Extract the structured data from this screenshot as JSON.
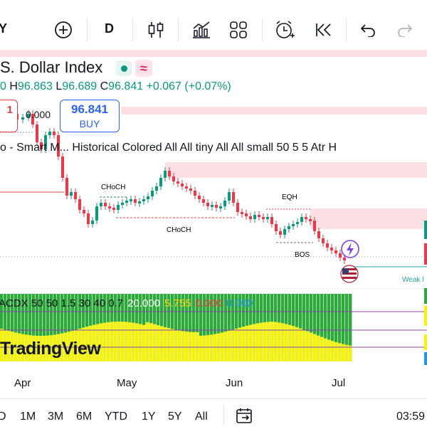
{
  "toolbar": {
    "symbol_fragment": "Y",
    "add_icon": "plus-circle-icon",
    "interval": "D",
    "candles_icon": "candlestick-icon",
    "indicators_icon": "indicators-icon",
    "templates_icon": "layout-grid-icon",
    "alert_icon": "alarm-add-icon",
    "replay_icon": "replay-icon",
    "undo_icon": "undo-icon",
    "redo_icon": "redo-icon"
  },
  "legend": {
    "title": "S. Dollar Index",
    "open_value": "0",
    "high_label": "H",
    "high_value": "96.863",
    "low_label": "L",
    "low_value": "96.689",
    "close_label": "C",
    "close_value": "96.841",
    "change": "+0.067 (+0.07%)",
    "pink_badge": "≈"
  },
  "trade": {
    "sell_price_fragment": "1",
    "spread": "0.000",
    "buy_price": "96.841",
    "buy_label": "BUY"
  },
  "indicator": {
    "name": "o - Smart M... Historical Colored All All tiny All All small 50 5 5 Atr H"
  },
  "annotations": {
    "choch_upper": "CHoCH",
    "choch_lower": "CHoCH",
    "eqh": "EQH",
    "bos": "BOS",
    "weak": "Weak l"
  },
  "oscillator": {
    "params": "ACDX 50 50 1.5 30 40 0.7",
    "v1": "20.000",
    "v2": "5.755",
    "v3": "0.000",
    "v4": "0.000"
  },
  "brand": "TradingView",
  "time_axis": [
    "Apr",
    "May",
    "Jun",
    "Jul"
  ],
  "ranges": [
    "D",
    "1M",
    "3M",
    "6M",
    "YTD",
    "1Y",
    "5Y",
    "All"
  ],
  "clock": "03:59",
  "colors": {
    "up": "#089981",
    "down": "#f23645",
    "zone": "#fde0e3",
    "osc_green": "#2eaa3c",
    "osc_yellow": "#f5f20a"
  },
  "chart_data": {
    "type": "candlestick",
    "x": [
      "Apr",
      "May",
      "Jun",
      "Jul"
    ],
    "ylim": [
      95.5,
      101.5
    ]
  }
}
